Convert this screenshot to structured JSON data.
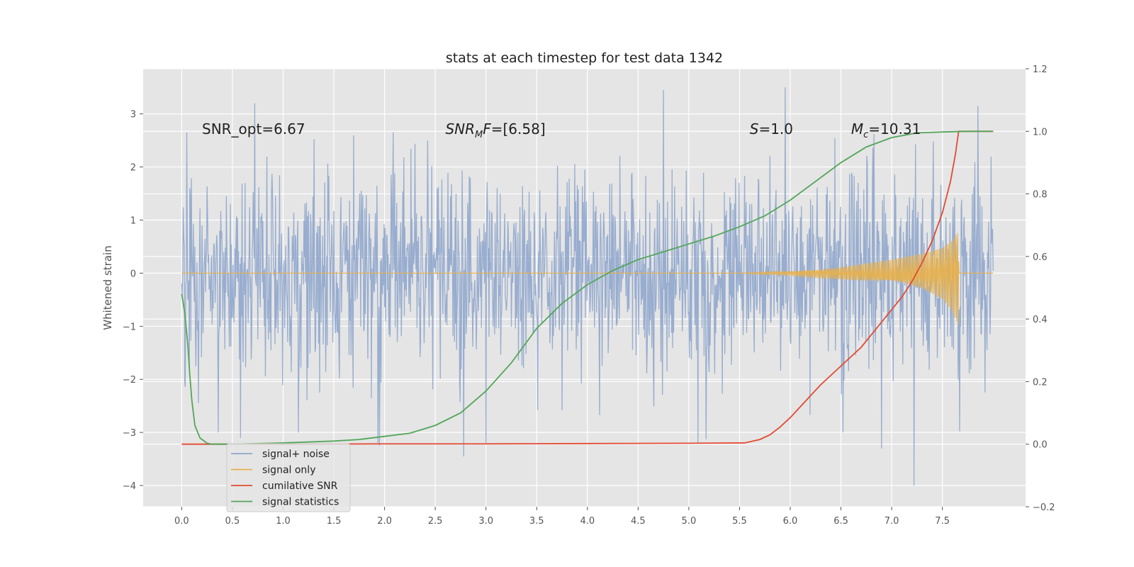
{
  "chart_data": {
    "type": "line",
    "title": "stats at each timestep for test data 1342",
    "xlabel": "",
    "ylabel": "Whitened strain",
    "y2label": "",
    "xlim": [
      -0.38,
      8.32
    ],
    "ylim": [
      -4.4,
      3.85
    ],
    "y2lim": [
      -0.2,
      1.2
    ],
    "xticks": [
      0.0,
      0.5,
      1.0,
      1.5,
      2.0,
      2.5,
      3.0,
      3.5,
      4.0,
      4.5,
      5.0,
      5.5,
      6.0,
      6.5,
      7.0,
      7.5
    ],
    "xtick_labels": [
      "0.0",
      "0.5",
      "1.0",
      "1.5",
      "2.0",
      "2.5",
      "3.0",
      "3.5",
      "4.0",
      "4.5",
      "5.0",
      "5.5",
      "6.0",
      "6.5",
      "7.0",
      "7.5"
    ],
    "yticks": [
      -4,
      -3,
      -2,
      -1,
      0,
      1,
      2,
      3
    ],
    "ytick_labels": [
      "−4",
      "−3",
      "−2",
      "−1",
      "0",
      "1",
      "2",
      "3"
    ],
    "y2ticks": [
      -0.2,
      0.0,
      0.2,
      0.4,
      0.6,
      0.8,
      1.0,
      1.2
    ],
    "y2tick_labels": [
      "−0.2",
      "0.0",
      "0.2",
      "0.4",
      "0.6",
      "0.8",
      "1.0",
      "1.2"
    ],
    "grid": true,
    "legend_position": "lower-left",
    "annotations": [
      {
        "text": "SNR_opt=6.67",
        "x": 0.2,
        "y": 2.62
      },
      {
        "text": "SNR_MF=[6.58]",
        "x": 2.6,
        "y": 2.62
      },
      {
        "text": "S=1.0",
        "x": 5.6,
        "y": 2.62
      },
      {
        "text": "M_c=10.31",
        "x": 6.6,
        "y": 2.62
      }
    ],
    "series": [
      {
        "name": "signal+ noise",
        "axis": "left",
        "color": "#8fa6cc",
        "kind": "noise",
        "x_range": [
          0.0,
          8.0
        ],
        "typical_std": 0.95,
        "extremes": [
          {
            "x": 0.05,
            "y": 2.65
          },
          {
            "x": 0.36,
            "y": -3.0
          },
          {
            "x": 0.58,
            "y": -3.1
          },
          {
            "x": 0.72,
            "y": 3.2
          },
          {
            "x": 1.15,
            "y": -3.0
          },
          {
            "x": 1.95,
            "y": -3.25
          },
          {
            "x": 2.78,
            "y": -3.45
          },
          {
            "x": 3.0,
            "y": -3.2
          },
          {
            "x": 4.75,
            "y": 3.45
          },
          {
            "x": 5.95,
            "y": 3.5
          },
          {
            "x": 6.52,
            "y": -3.0
          },
          {
            "x": 6.9,
            "y": -3.3
          },
          {
            "x": 7.22,
            "y": -4.0
          },
          {
            "x": 7.85,
            "y": 3.15
          }
        ]
      },
      {
        "name": "signal only",
        "axis": "left",
        "color": "#e8b04a",
        "kind": "chirp",
        "x_range": [
          0.0,
          8.0
        ],
        "merger_x": 7.66,
        "envelope": {
          "x": [
            5.5,
            6.0,
            6.5,
            7.0,
            7.3,
            7.5,
            7.6,
            7.66
          ],
          "y": [
            0.0,
            0.05,
            0.13,
            0.25,
            0.38,
            0.55,
            0.78,
            1.05
          ]
        }
      },
      {
        "name": "cumilative SNR",
        "axis": "right",
        "color": "#e24a33",
        "x": [
          0.0,
          1.0,
          2.0,
          3.0,
          4.0,
          5.0,
          5.55,
          5.7,
          5.8,
          5.9,
          6.0,
          6.1,
          6.2,
          6.3,
          6.4,
          6.5,
          6.6,
          6.7,
          6.8,
          6.9,
          7.0,
          7.1,
          7.2,
          7.3,
          7.4,
          7.5,
          7.58,
          7.63,
          7.66,
          7.7,
          8.0
        ],
        "y": [
          0.0,
          0.0,
          0.001,
          0.001,
          0.002,
          0.003,
          0.004,
          0.015,
          0.03,
          0.055,
          0.085,
          0.12,
          0.155,
          0.19,
          0.22,
          0.25,
          0.28,
          0.31,
          0.35,
          0.39,
          0.43,
          0.47,
          0.52,
          0.58,
          0.65,
          0.74,
          0.84,
          0.93,
          1.0,
          1.0,
          1.0
        ]
      },
      {
        "name": "signal statistics",
        "axis": "right",
        "color": "#53a65a",
        "x": [
          0.0,
          0.03,
          0.06,
          0.08,
          0.1,
          0.13,
          0.18,
          0.25,
          0.3,
          0.5,
          1.0,
          1.5,
          1.75,
          2.0,
          2.25,
          2.5,
          2.75,
          3.0,
          3.25,
          3.5,
          3.75,
          4.0,
          4.25,
          4.5,
          4.75,
          5.0,
          5.25,
          5.5,
          5.75,
          6.0,
          6.25,
          6.5,
          6.75,
          7.0,
          7.25,
          7.5,
          7.75,
          8.0
        ],
        "y": [
          0.48,
          0.42,
          0.32,
          0.22,
          0.14,
          0.06,
          0.02,
          0.003,
          0.0,
          0.0,
          0.004,
          0.01,
          0.015,
          0.025,
          0.035,
          0.06,
          0.1,
          0.17,
          0.26,
          0.37,
          0.45,
          0.51,
          0.555,
          0.59,
          0.615,
          0.64,
          0.665,
          0.695,
          0.73,
          0.78,
          0.84,
          0.9,
          0.95,
          0.98,
          0.995,
          0.998,
          1.0,
          1.0
        ]
      }
    ]
  }
}
